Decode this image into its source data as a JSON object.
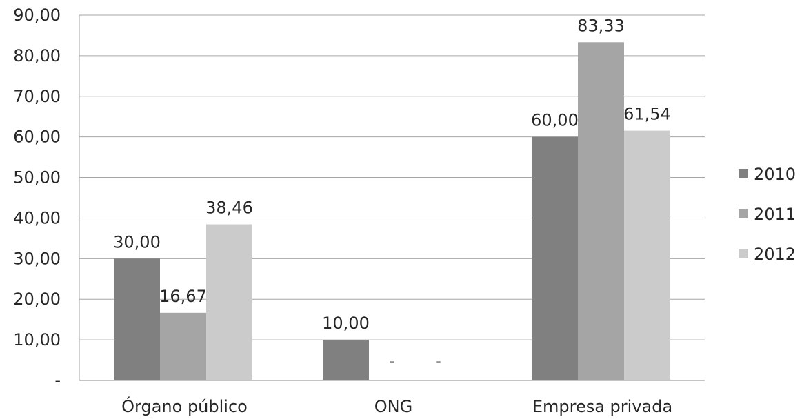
{
  "chart_data": {
    "type": "bar",
    "categories": [
      "Órgano público",
      "ONG",
      "Empresa privada"
    ],
    "series": [
      {
        "name": "2010",
        "values": [
          30.0,
          10.0,
          60.0
        ],
        "labels": [
          "30,00",
          "10,00",
          "60,00"
        ],
        "color": "#808080"
      },
      {
        "name": "2011",
        "values": [
          16.67,
          0,
          83.33
        ],
        "labels": [
          "16,67",
          "-",
          "83,33"
        ],
        "color": "#a5a5a5"
      },
      {
        "name": "2012",
        "values": [
          38.46,
          0,
          61.54
        ],
        "labels": [
          "38,46",
          "-",
          "61,54"
        ],
        "color": "#cbcbcb"
      }
    ],
    "ylim": [
      0,
      90
    ],
    "yticks": [
      0,
      10,
      20,
      30,
      40,
      50,
      60,
      70,
      80,
      90
    ],
    "ytick_labels": [
      "-",
      "10,00",
      "20,00",
      "30,00",
      "40,00",
      "50,00",
      "60,00",
      "70,00",
      "80,00",
      "90,00"
    ],
    "grid": true,
    "legend": "right",
    "title": "",
    "xlabel": "",
    "ylabel": ""
  }
}
